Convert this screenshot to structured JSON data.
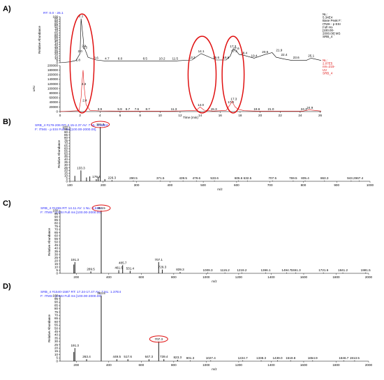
{
  "colors": {
    "ms": "#000000",
    "uv": "#e01010",
    "header": "#2a2aff",
    "highlight": "#e01010"
  },
  "panel_labels": [
    "A)",
    "B)",
    "C)",
    "D)"
  ],
  "chart_data": [
    {
      "type": "line",
      "panel": "A)",
      "rt_label": "RT: 0.0 - 26.1",
      "legend": {
        "ms": [
          "NL:",
          "5.34E4",
          "Base Peak F:",
          "ITMS - p ESI",
          "Full ms",
          "[100.00-",
          "2000.00] MS",
          "SRB_4"
        ],
        "uv": [
          "NL:",
          "2.07E5",
          "nm=215-",
          "UV",
          "SRB_4"
        ]
      },
      "xlabel": "Time (min)",
      "xlim": [
        0,
        26.1
      ],
      "x_ticks": [
        "0",
        "2",
        "4",
        "6",
        "8",
        "10",
        "12",
        "14",
        "16",
        "18",
        "20",
        "22",
        "24",
        "26"
      ],
      "ms_panel": {
        "ylabel": "Relative Abundance",
        "ylim": [
          0,
          100
        ],
        "y_ticks": [
          "0",
          "5",
          "10",
          "15",
          "20",
          "25",
          "30",
          "35",
          "40",
          "45",
          "50",
          "55",
          "60",
          "65",
          "70",
          "75",
          "80",
          "85",
          "90",
          "95",
          "100"
        ],
        "series": [
          {
            "x": [
              0,
              1.0,
              1.6,
              2.0,
              2.1,
              2.3,
              2.4,
              2.5,
              2.8,
              3.6,
              4.5,
              6.0,
              8.5,
              10.2,
              11.5,
              13.2,
              14.1,
              15.6,
              16.6,
              17.0,
              17.3,
              17.6,
              17.9,
              18.4,
              19.4,
              20.5,
              21.2,
              21.6,
              22.4,
              23.2,
              24.6,
              25.1,
              26.1
            ],
            "y": [
              0,
              2,
              5,
              20,
              96,
              55,
              31,
              29,
              12,
              6,
              4,
              4,
              4,
              4,
              4,
              6,
              20,
              6,
              6,
              14,
              30,
              26,
              18,
              16,
              10,
              18,
              22,
              12,
              8,
              5,
              5,
              10,
              5
            ]
          }
        ],
        "peak_labels": [
          {
            "x": 1.8,
            "y": 1,
            "label": "1.8"
          },
          {
            "x": 2.0,
            "y": 20,
            "label": "2.0"
          },
          {
            "x": 2.1,
            "y": 96,
            "label": "2.1"
          },
          {
            "x": 2.4,
            "y": 31,
            "label": "2.4"
          },
          {
            "x": 2.5,
            "y": 28,
            "label": "2.5"
          },
          {
            "x": 3.6,
            "y": 5,
            "label": "3.6"
          },
          {
            "x": 4.7,
            "y": 4,
            "label": "4.7"
          },
          {
            "x": 6.0,
            "y": 4,
            "label": "6.0"
          },
          {
            "x": 8.5,
            "y": 4,
            "label": "8.5"
          },
          {
            "x": 10.2,
            "y": 4,
            "label": "10.2"
          },
          {
            "x": 11.5,
            "y": 4,
            "label": "11.5"
          },
          {
            "x": 13.2,
            "y": 6,
            "label": "13.2"
          },
          {
            "x": 14.1,
            "y": 20,
            "label": "14.1"
          },
          {
            "x": 15.6,
            "y": 6,
            "label": "15.6"
          },
          {
            "x": 16.6,
            "y": 6,
            "label": "16.6"
          },
          {
            "x": 17.3,
            "y": 30,
            "label": "17.3"
          },
          {
            "x": 17.6,
            "y": 26,
            "label": "17.6"
          },
          {
            "x": 18.4,
            "y": 16,
            "label": "18.4"
          },
          {
            "x": 17.4,
            "y": 20,
            "label": "17.4"
          },
          {
            "x": 19.4,
            "y": 10,
            "label": "19.4"
          },
          {
            "x": 20.5,
            "y": 18,
            "label": "20.5"
          },
          {
            "x": 21.9,
            "y": 22,
            "label": "21.9"
          },
          {
            "x": 22.4,
            "y": 12,
            "label": "22.4"
          },
          {
            "x": 23.6,
            "y": 6,
            "label": "23.6"
          },
          {
            "x": 25.1,
            "y": 10,
            "label": "25.1"
          }
        ]
      },
      "uv_panel": {
        "ylabel": "uAU",
        "ylim": [
          0,
          200000
        ],
        "y_ticks": [
          "0",
          "20000",
          "40000",
          "60000",
          "80000",
          "100000",
          "120000",
          "140000",
          "160000",
          "180000",
          "200000"
        ],
        "series": [
          {
            "x": [
              0,
              1.9,
              2.1,
              2.2,
              2.3,
              2.4,
              2.6,
              3.0,
              3.9,
              5.9,
              8.7,
              11.3,
              13.6,
              14.0,
              14.4,
              15.3,
              16.6,
              17.0,
              17.2,
              17.3,
              17.5,
              17.8,
              18.4,
              19.6,
              21.0,
              24.3,
              24.9,
              26.1
            ],
            "y": [
              0,
              4000,
              60000,
              130000,
              180000,
              110000,
              30000,
              5000,
              3000,
              2000,
              2000,
              2000,
              5000,
              20000,
              6000,
              2000,
              5000,
              30000,
              45000,
              35000,
              20000,
              10000,
              4000,
              2000,
              2000,
              2000,
              8000,
              2000
            ]
          }
        ],
        "peak_labels": [
          {
            "x": 2.3,
            "y": 110000,
            "label": "2.3"
          },
          {
            "x": 2.4,
            "y": 40000,
            "label": "2.4"
          },
          {
            "x": 3.9,
            "y": 2000,
            "label": "3.9"
          },
          {
            "x": 5.9,
            "y": 2000,
            "label": "5.9"
          },
          {
            "x": 6.7,
            "y": 2000,
            "label": "6.7"
          },
          {
            "x": 7.6,
            "y": 2000,
            "label": "7.6"
          },
          {
            "x": 8.7,
            "y": 2000,
            "label": "8.7"
          },
          {
            "x": 11.3,
            "y": 2000,
            "label": "11.3"
          },
          {
            "x": 14.0,
            "y": 20000,
            "label": "14.0"
          },
          {
            "x": 15.3,
            "y": 2000,
            "label": "15.3"
          },
          {
            "x": 17.0,
            "y": 32000,
            "label": "17.0"
          },
          {
            "x": 17.3,
            "y": 45000,
            "label": "17.3"
          },
          {
            "x": 19.6,
            "y": 2000,
            "label": "19.6"
          },
          {
            "x": 21.0,
            "y": 2000,
            "label": "21.0"
          },
          {
            "x": 24.3,
            "y": 2000,
            "label": "24.3"
          },
          {
            "x": 24.9,
            "y": 8000,
            "label": "24.9"
          }
        ]
      },
      "highlighted_ranges_min": [
        [
          1.0,
          3.4
        ],
        [
          12.8,
          15.6
        ],
        [
          16.2,
          18.4
        ]
      ]
    },
    {
      "type": "bar",
      "panel": "B)",
      "header": [
        "SRB_4 #179-206  RT: 2.15-2.37  AV: 7  NL: 2.93E4",
        "F: ITMS - p ESI Full ms [100.00-2000.00]"
      ],
      "xlabel": "m/z",
      "ylabel": "Relative Abundance",
      "xlim": [
        100,
        1000
      ],
      "ylim": [
        0,
        100
      ],
      "x_ticks": [
        "100",
        "200",
        "300",
        "400",
        "500",
        "600",
        "700",
        "800",
        "900",
        "1000"
      ],
      "y_ticks": [
        "0",
        "5",
        "10",
        "15",
        "20",
        "25",
        "30",
        "35",
        "40",
        "45",
        "50",
        "55",
        "60",
        "65",
        "70",
        "75",
        "80",
        "85",
        "90",
        "95",
        "100"
      ],
      "x": [
        115,
        133.3,
        150,
        160,
        179.4,
        185,
        191.3,
        205,
        226.3,
        290.5,
        371.5,
        439.5,
        479.6,
        533.6,
        605.6,
        632.5,
        707.5,
        769.5,
        805.4,
        863.3,
        943.2,
        967.4
      ],
      "values": [
        10,
        20,
        7,
        9,
        4,
        8,
        100,
        4,
        2,
        1,
        1,
        1,
        1,
        1,
        1,
        1,
        1,
        1,
        1,
        1,
        1,
        1
      ],
      "peak_labels": [
        "133.3",
        "179.4",
        "191.3",
        "226.3",
        "290.5",
        "371.5",
        "439.5",
        "479.6",
        "533.6",
        "605.6",
        "632.5",
        "707.5",
        "769.5",
        "805.4",
        "863.3",
        "943.2",
        "967.4"
      ],
      "highlighted_peak": "191.3"
    },
    {
      "type": "bar",
      "panel": "C)",
      "header": [
        "SRB_4 #1255  RT: 14.11  AV: 1  NL: 9.61E3",
        "F: ITMS - p ESI Full ms [100.00-2000.00]"
      ],
      "xlabel": "m/z",
      "ylabel": "Relative Abundance",
      "xlim": [
        100,
        2000
      ],
      "ylim": [
        0,
        100
      ],
      "x_ticks": [
        "200",
        "400",
        "600",
        "800",
        "1000",
        "1200",
        "1400",
        "1600",
        "1800",
        "2000"
      ],
      "y_ticks": [
        "0",
        "5",
        "10",
        "15",
        "20",
        "25",
        "30",
        "35",
        "40",
        "45",
        "50",
        "55",
        "60",
        "65",
        "70",
        "75",
        "80",
        "85",
        "90",
        "95",
        "100"
      ],
      "x": [
        185,
        191.3,
        289.5,
        353.5,
        461.5,
        485.7,
        531.4,
        707.1,
        729.3,
        839.3,
        1009.3,
        1115.2,
        1219.2,
        1366.1,
        1494.7,
        1551.3,
        1721.6,
        1841.2,
        1981.5
      ],
      "values": [
        14,
        18,
        3,
        100,
        5,
        13,
        4,
        18,
        6,
        2,
        1,
        1,
        1,
        1,
        1,
        1,
        1,
        1,
        1
      ],
      "peak_labels": [
        "191.3",
        "289.5",
        "353.5",
        "461.5",
        "485.7",
        "531.4",
        "707.1",
        "729.3",
        "839.3",
        "1009.3",
        "1115.2",
        "1219.2",
        "1366.1",
        "1494.7",
        "1551.3",
        "1721.6",
        "1841.2",
        "1981.5"
      ],
      "highlighted_peak": "353.5"
    },
    {
      "type": "bar",
      "panel": "D)",
      "header": [
        "SRB_4 #1540-1587  RT: 17.24-17.47  AV: 7  NL: 1.37E4",
        "F: ITMS - p ESI Full ms [100.00-2000.00]"
      ],
      "xlabel": "m/z",
      "ylabel": "Relative Abundance",
      "xlim": [
        100,
        2000
      ],
      "ylim": [
        0,
        100
      ],
      "x_ticks": [
        "200",
        "400",
        "600",
        "800",
        "1000",
        "1200",
        "1400",
        "1600",
        "1800",
        "2000"
      ],
      "y_ticks": [
        "0",
        "5",
        "10",
        "15",
        "20",
        "25",
        "30",
        "35",
        "40",
        "45",
        "50",
        "55",
        "60",
        "65",
        "70",
        "75",
        "80",
        "85",
        "90",
        "95",
        "100"
      ],
      "x": [
        185,
        191.3,
        263.4,
        353.5,
        449.5,
        517.6,
        647.3,
        707.3,
        739.4,
        823.3,
        901.3,
        1027.4,
        1224.7,
        1338.3,
        1439.0,
        1519.8,
        1654.9,
        1846.7,
        1913.5
      ],
      "values": [
        14,
        20,
        3,
        100,
        3,
        3,
        3,
        30,
        3,
        2,
        1,
        1,
        1,
        1,
        1,
        1,
        1,
        1,
        1
      ],
      "peak_labels": [
        "191.3",
        "263.4",
        "353.5",
        "449.5",
        "517.6",
        "647.3",
        "707.3",
        "739.4",
        "823.3",
        "901.3",
        "1027.4",
        "1224.7",
        "1338.3",
        "1439.0",
        "1519.8",
        "1654.9",
        "1846.7",
        "1913.5"
      ],
      "highlighted_peak": "707.3"
    }
  ]
}
